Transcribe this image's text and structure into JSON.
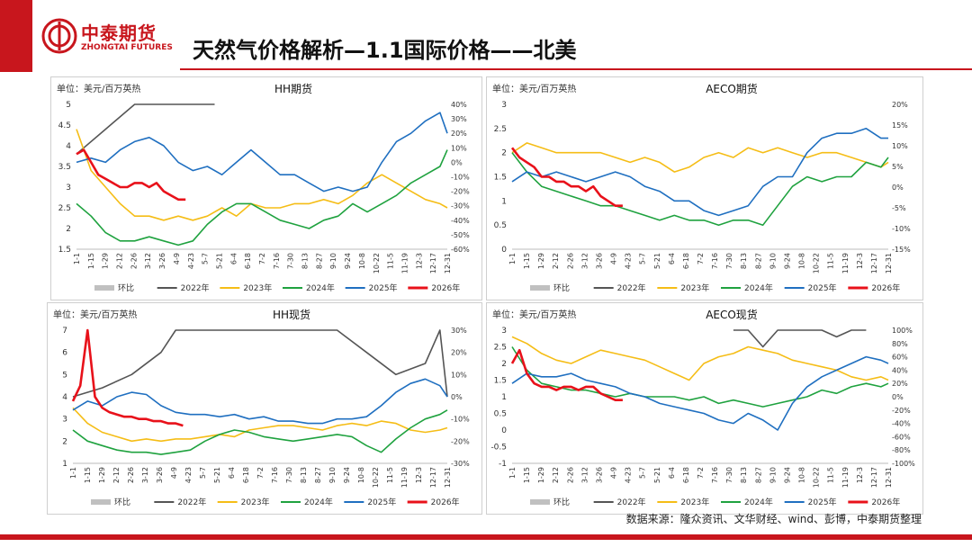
{
  "header": {
    "logo_cn": "中泰期货",
    "logo_en": "ZHONGTAI FUTURES",
    "title": "天然气价格解析—1.1国际价格——北美"
  },
  "footer": {
    "source": "数据来源：隆众资讯、文华财经、wind、彭博，中泰期货整理"
  },
  "colors": {
    "brand": "#c8161d",
    "2022": "#555555",
    "2023": "#f5bd16",
    "2024": "#1fa23f",
    "2025": "#1f6fc0",
    "2026": "#e8111a",
    "mom": "#c0c0c0"
  },
  "x_ticks": [
    "1-1",
    "1-15",
    "1-29",
    "2-12",
    "2-26",
    "3-12",
    "3-26",
    "4-9",
    "4-23",
    "5-7",
    "5-21",
    "6-4",
    "6-18",
    "7-2",
    "7-16",
    "7-30",
    "8-13",
    "8-27",
    "9-10",
    "9-24",
    "10-8",
    "10-22",
    "11-5",
    "11-19",
    "12-3",
    "12-17",
    "12-31"
  ],
  "legend": [
    "环比",
    "2022年",
    "2023年",
    "2024年",
    "2025年",
    "2026年"
  ],
  "chart_data": [
    {
      "type": "line",
      "title": "HH期货",
      "unit": "单位：美元/百万英热",
      "y_ticks": [
        "5",
        "4.5",
        "4",
        "3.5",
        "3",
        "2.5",
        "2",
        "1.5"
      ],
      "y2_ticks": [
        "40%",
        "30%",
        "20%",
        "10%",
        "0%",
        "-10%",
        "-20%",
        "-30%",
        "-40%",
        "-50%",
        "-60%"
      ],
      "ylim": [
        1.5,
        5
      ],
      "y2lim": [
        -60,
        40
      ],
      "series": [
        {
          "name": "2022年",
          "x": [
            0,
            4,
            8,
            12,
            16,
            19
          ],
          "y": [
            3.8,
            4.4,
            5,
            5,
            5,
            5
          ]
        },
        {
          "name": "2023年",
          "x": [
            0,
            2,
            4,
            6,
            8,
            10,
            12,
            14,
            16,
            18,
            20,
            22,
            24,
            26,
            28,
            30,
            32,
            34,
            36,
            38,
            40,
            42,
            44,
            46,
            48,
            50,
            51
          ],
          "y": [
            4.4,
            3.4,
            3,
            2.6,
            2.3,
            2.3,
            2.2,
            2.3,
            2.2,
            2.3,
            2.5,
            2.3,
            2.6,
            2.5,
            2.5,
            2.6,
            2.6,
            2.7,
            2.6,
            2.8,
            3.1,
            3.3,
            3.1,
            2.9,
            2.7,
            2.6,
            2.5
          ]
        },
        {
          "name": "2024年",
          "x": [
            0,
            2,
            4,
            6,
            8,
            10,
            12,
            14,
            16,
            18,
            20,
            22,
            24,
            26,
            28,
            30,
            32,
            34,
            36,
            38,
            40,
            42,
            44,
            46,
            48,
            50,
            51
          ],
          "y": [
            2.6,
            2.3,
            1.9,
            1.7,
            1.7,
            1.8,
            1.7,
            1.6,
            1.7,
            2.1,
            2.4,
            2.6,
            2.6,
            2.4,
            2.2,
            2.1,
            2.0,
            2.2,
            2.3,
            2.6,
            2.4,
            2.6,
            2.8,
            3.1,
            3.3,
            3.5,
            3.9
          ]
        },
        {
          "name": "2025年",
          "x": [
            0,
            2,
            4,
            6,
            8,
            10,
            12,
            14,
            16,
            18,
            20,
            22,
            24,
            26,
            28,
            30,
            32,
            34,
            36,
            38,
            40,
            42,
            44,
            46,
            48,
            50,
            51
          ],
          "y": [
            3.6,
            3.7,
            3.6,
            3.9,
            4.1,
            4.2,
            4.0,
            3.6,
            3.4,
            3.5,
            3.3,
            3.6,
            3.9,
            3.6,
            3.3,
            3.3,
            3.1,
            2.9,
            3.0,
            2.9,
            3.0,
            3.6,
            4.1,
            4.3,
            4.6,
            4.8,
            4.3
          ]
        },
        {
          "name": "2026年",
          "x": [
            0,
            1,
            2,
            3,
            4,
            5,
            6,
            7,
            8,
            9,
            10,
            11,
            12,
            13,
            14,
            15
          ],
          "y": [
            3.8,
            3.9,
            3.6,
            3.3,
            3.2,
            3.1,
            3.0,
            3.0,
            3.1,
            3.1,
            3.0,
            3.1,
            2.9,
            2.8,
            2.7,
            2.7
          ]
        }
      ]
    },
    {
      "type": "line",
      "title": "AECO期货",
      "unit": "单位：美元/百万英热",
      "y_ticks": [
        "3",
        "2.5",
        "2",
        "1.5",
        "1",
        "0.5",
        "0"
      ],
      "y2_ticks": [
        "20%",
        "15%",
        "10%",
        "5%",
        "0%",
        "-5%",
        "-10%",
        "-15%"
      ],
      "ylim": [
        0,
        3
      ],
      "y2lim": [
        -15,
        20
      ],
      "series": [
        {
          "name": "2022年",
          "x": [],
          "y": []
        },
        {
          "name": "2023年",
          "x": [
            0,
            2,
            4,
            6,
            8,
            10,
            12,
            14,
            16,
            18,
            20,
            22,
            24,
            26,
            28,
            30,
            32,
            34,
            36,
            38,
            40,
            42,
            44,
            46,
            48,
            50,
            51
          ],
          "y": [
            2.0,
            2.2,
            2.1,
            2.0,
            2.0,
            2.0,
            2.0,
            1.9,
            1.8,
            1.9,
            1.8,
            1.6,
            1.7,
            1.9,
            2.0,
            1.9,
            2.1,
            2.0,
            2.1,
            2.0,
            1.9,
            2.0,
            2.0,
            1.9,
            1.8,
            1.7,
            1.8
          ]
        },
        {
          "name": "2024年",
          "x": [
            0,
            2,
            4,
            6,
            8,
            10,
            12,
            14,
            16,
            18,
            20,
            22,
            24,
            26,
            28,
            30,
            32,
            34,
            36,
            38,
            40,
            42,
            44,
            46,
            48,
            50,
            51
          ],
          "y": [
            2.0,
            1.6,
            1.3,
            1.2,
            1.1,
            1.0,
            0.9,
            0.9,
            0.8,
            0.7,
            0.6,
            0.7,
            0.6,
            0.6,
            0.5,
            0.6,
            0.6,
            0.5,
            0.9,
            1.3,
            1.5,
            1.4,
            1.5,
            1.5,
            1.8,
            1.7,
            1.9
          ]
        },
        {
          "name": "2025年",
          "x": [
            0,
            2,
            4,
            6,
            8,
            10,
            12,
            14,
            16,
            18,
            20,
            22,
            24,
            26,
            28,
            30,
            32,
            34,
            36,
            38,
            40,
            42,
            44,
            46,
            48,
            50,
            51
          ],
          "y": [
            1.4,
            1.6,
            1.5,
            1.6,
            1.5,
            1.4,
            1.5,
            1.6,
            1.5,
            1.3,
            1.2,
            1.0,
            1.0,
            0.8,
            0.7,
            0.8,
            0.9,
            1.3,
            1.5,
            1.5,
            2.0,
            2.3,
            2.4,
            2.4,
            2.5,
            2.3,
            2.3
          ]
        },
        {
          "name": "2026年",
          "x": [
            0,
            1,
            2,
            3,
            4,
            5,
            6,
            7,
            8,
            9,
            10,
            11,
            12,
            13,
            14,
            15
          ],
          "y": [
            2.1,
            1.9,
            1.8,
            1.7,
            1.5,
            1.5,
            1.4,
            1.4,
            1.3,
            1.3,
            1.2,
            1.3,
            1.1,
            1.0,
            0.9,
            0.9
          ]
        }
      ]
    },
    {
      "type": "line",
      "title": "HH现货",
      "unit": "单位：美元/百万英热",
      "y_ticks": [
        "7",
        "6",
        "5",
        "4",
        "3",
        "2",
        "1"
      ],
      "y2_ticks": [
        "30%",
        "20%",
        "10%",
        "0%",
        "-10%",
        "-20%",
        "-30%"
      ],
      "ylim": [
        1,
        7
      ],
      "y2lim": [
        -30,
        30
      ],
      "series": [
        {
          "name": "2022年",
          "x": [
            0,
            4,
            8,
            12,
            14,
            16,
            20,
            24,
            28,
            32,
            36,
            40,
            44,
            48,
            50,
            51
          ],
          "y": [
            4.0,
            4.4,
            5.0,
            6.0,
            7.0,
            7.0,
            7.0,
            7.0,
            7.0,
            7.0,
            7.0,
            6.0,
            5.0,
            5.5,
            7.0,
            4.0
          ]
        },
        {
          "name": "2023年",
          "x": [
            0,
            2,
            4,
            6,
            8,
            10,
            12,
            14,
            16,
            18,
            20,
            22,
            24,
            26,
            28,
            30,
            32,
            34,
            36,
            38,
            40,
            42,
            44,
            46,
            48,
            50,
            51
          ],
          "y": [
            3.5,
            2.8,
            2.4,
            2.2,
            2.0,
            2.1,
            2.0,
            2.1,
            2.1,
            2.2,
            2.3,
            2.2,
            2.5,
            2.6,
            2.7,
            2.7,
            2.6,
            2.5,
            2.7,
            2.8,
            2.7,
            2.9,
            2.8,
            2.5,
            2.4,
            2.5,
            2.6
          ]
        },
        {
          "name": "2024年",
          "x": [
            0,
            2,
            4,
            6,
            8,
            10,
            12,
            14,
            16,
            18,
            20,
            22,
            24,
            26,
            28,
            30,
            32,
            34,
            36,
            38,
            40,
            42,
            44,
            46,
            48,
            50,
            51
          ],
          "y": [
            2.5,
            2.0,
            1.8,
            1.6,
            1.5,
            1.5,
            1.4,
            1.5,
            1.6,
            2.0,
            2.3,
            2.5,
            2.4,
            2.2,
            2.1,
            2.0,
            2.1,
            2.2,
            2.3,
            2.2,
            1.8,
            1.5,
            2.1,
            2.6,
            3.0,
            3.2,
            3.4
          ]
        },
        {
          "name": "2025年",
          "x": [
            0,
            2,
            4,
            6,
            8,
            10,
            12,
            14,
            16,
            18,
            20,
            22,
            24,
            26,
            28,
            30,
            32,
            34,
            36,
            38,
            40,
            42,
            44,
            46,
            48,
            50,
            51
          ],
          "y": [
            3.4,
            3.8,
            3.6,
            4.0,
            4.2,
            4.1,
            3.6,
            3.3,
            3.2,
            3.2,
            3.1,
            3.2,
            3.0,
            3.1,
            2.9,
            2.9,
            2.8,
            2.8,
            3.0,
            3.0,
            3.1,
            3.6,
            4.2,
            4.6,
            4.8,
            4.5,
            4.0
          ]
        },
        {
          "name": "2026年",
          "x": [
            0,
            1,
            2,
            3,
            4,
            5,
            6,
            7,
            8,
            9,
            10,
            11,
            12,
            13,
            14,
            15
          ],
          "y": [
            3.8,
            4.5,
            7.0,
            4.0,
            3.5,
            3.3,
            3.2,
            3.1,
            3.1,
            3.0,
            3.0,
            2.9,
            2.9,
            2.8,
            2.8,
            2.7
          ]
        }
      ]
    },
    {
      "type": "line",
      "title": "AECO现货",
      "unit": "单位：美元/百万英热",
      "y_ticks": [
        "3",
        "2.5",
        "2",
        "1.5",
        "1",
        "0.5",
        "0",
        "-0.5",
        "-1"
      ],
      "y2_ticks": [
        "100%",
        "80%",
        "60%",
        "40%",
        "20%",
        "0%",
        "-20%",
        "-40%",
        "-60%",
        "-80%",
        "-100%"
      ],
      "ylim": [
        -1,
        3
      ],
      "y2lim": [
        -100,
        100
      ],
      "series": [
        {
          "name": "2022年",
          "x": [
            30,
            32,
            34,
            36,
            38,
            40,
            42,
            44,
            46,
            48
          ],
          "y": [
            3.0,
            3.0,
            2.5,
            3.0,
            3.0,
            3.0,
            3.0,
            2.8,
            3.0,
            3.0
          ]
        },
        {
          "name": "2023年",
          "x": [
            0,
            2,
            4,
            6,
            8,
            10,
            12,
            14,
            16,
            18,
            20,
            22,
            24,
            26,
            28,
            30,
            32,
            34,
            36,
            38,
            40,
            42,
            44,
            46,
            48,
            50,
            51
          ],
          "y": [
            2.8,
            2.6,
            2.3,
            2.1,
            2.0,
            2.2,
            2.4,
            2.3,
            2.2,
            2.1,
            1.9,
            1.7,
            1.5,
            2.0,
            2.2,
            2.3,
            2.5,
            2.4,
            2.3,
            2.1,
            2.0,
            1.9,
            1.8,
            1.6,
            1.5,
            1.6,
            1.5
          ]
        },
        {
          "name": "2024年",
          "x": [
            0,
            2,
            4,
            6,
            8,
            10,
            12,
            14,
            16,
            18,
            20,
            22,
            24,
            26,
            28,
            30,
            32,
            34,
            36,
            38,
            40,
            42,
            44,
            46,
            48,
            50,
            51
          ],
          "y": [
            2.5,
            1.8,
            1.4,
            1.3,
            1.2,
            1.2,
            1.1,
            1.0,
            1.1,
            1.0,
            1.0,
            1.0,
            0.9,
            1.0,
            0.8,
            0.9,
            0.8,
            0.7,
            0.8,
            0.9,
            1.0,
            1.2,
            1.1,
            1.3,
            1.4,
            1.3,
            1.4
          ]
        },
        {
          "name": "2025年",
          "x": [
            0,
            2,
            4,
            6,
            8,
            10,
            12,
            14,
            16,
            18,
            20,
            22,
            24,
            26,
            28,
            30,
            32,
            34,
            36,
            38,
            40,
            42,
            44,
            46,
            48,
            50,
            51
          ],
          "y": [
            1.4,
            1.7,
            1.6,
            1.6,
            1.7,
            1.5,
            1.4,
            1.3,
            1.1,
            1.0,
            0.8,
            0.7,
            0.6,
            0.5,
            0.3,
            0.2,
            0.5,
            0.3,
            0.0,
            0.8,
            1.3,
            1.6,
            1.8,
            2.0,
            2.2,
            2.1,
            2.0
          ]
        },
        {
          "name": "2026年",
          "x": [
            0,
            1,
            2,
            3,
            4,
            5,
            6,
            7,
            8,
            9,
            10,
            11,
            12,
            13,
            14,
            15
          ],
          "y": [
            2.0,
            2.4,
            1.7,
            1.4,
            1.3,
            1.3,
            1.2,
            1.3,
            1.3,
            1.2,
            1.3,
            1.3,
            1.1,
            1.0,
            0.9,
            0.9
          ]
        }
      ]
    }
  ]
}
